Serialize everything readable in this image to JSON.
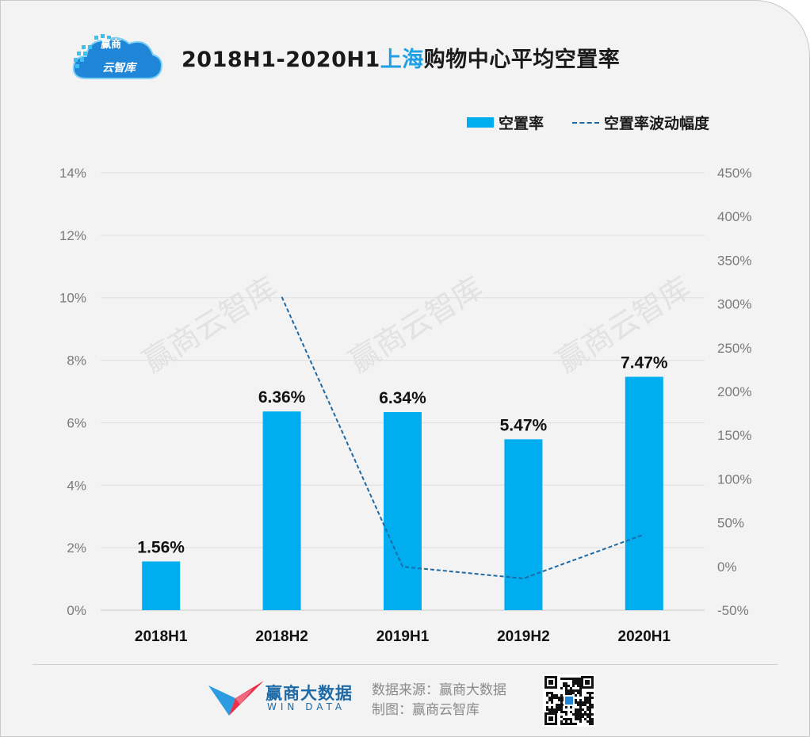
{
  "header": {
    "title_prefix": "2018H1-2020H1",
    "title_highlight": "上海",
    "title_suffix": "购物中心平均空置率",
    "logo_line1": "赢商",
    "logo_line2": "云智库"
  },
  "legend": {
    "bar_label": "空置率",
    "line_label": "空置率波动幅度"
  },
  "footer": {
    "brand_name": "赢商大数据",
    "brand_sub": "WIN DATA",
    "source": "数据来源：赢商大数据",
    "maker": "制图：赢商云智库"
  },
  "watermark": "赢商云智库",
  "colors": {
    "bar": "#00adef",
    "line": "#1e6aa6",
    "highlight": "#1ea0e6"
  },
  "chart_data": {
    "type": "bar",
    "categories": [
      "2018H1",
      "2018H2",
      "2019H1",
      "2019H2",
      "2020H1"
    ],
    "series": [
      {
        "name": "空置率",
        "axis": "left",
        "type": "bar",
        "values": [
          1.56,
          6.36,
          6.34,
          5.47,
          7.47
        ],
        "labels": [
          "1.56%",
          "6.36%",
          "6.34%",
          "5.47%",
          "7.47%"
        ]
      },
      {
        "name": "空置率波动幅度",
        "axis": "right",
        "type": "line",
        "style": "dashed",
        "values": [
          null,
          308,
          -0.3,
          -13.7,
          36.6
        ]
      }
    ],
    "y_left": {
      "ylim": [
        0,
        14
      ],
      "ticks": [
        0,
        2,
        4,
        6,
        8,
        10,
        12,
        14
      ],
      "tick_labels": [
        "0%",
        "2%",
        "4%",
        "6%",
        "8%",
        "10%",
        "12%",
        "14%"
      ]
    },
    "y_right": {
      "ylim": [
        -50,
        450
      ],
      "ticks": [
        -50,
        0,
        50,
        100,
        150,
        200,
        250,
        300,
        350,
        400,
        450
      ],
      "tick_labels": [
        "-50%",
        "0%",
        "50%",
        "100%",
        "150%",
        "200%",
        "250%",
        "300%",
        "350%",
        "400%",
        "450%"
      ]
    },
    "grid": true,
    "legend_position": "top-right"
  }
}
